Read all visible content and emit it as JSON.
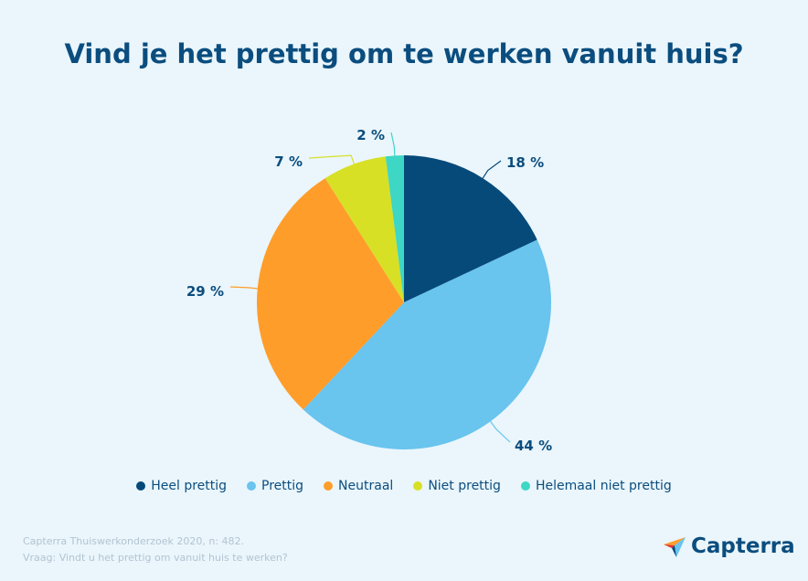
{
  "title": "Vind je het prettig om te werken vanuit huis?",
  "chart_data": {
    "type": "pie",
    "title": "Vind je het prettig om te werken vanuit huis?",
    "slices": [
      {
        "label": "Heel prettig",
        "value": 18,
        "display": "18 %",
        "color": "#064a7a"
      },
      {
        "label": "Prettig",
        "value": 44,
        "display": "44 %",
        "color": "#69c4ee"
      },
      {
        "label": "Neutraal",
        "value": 29,
        "display": "29 %",
        "color": "#ff9d2b"
      },
      {
        "label": "Niet prettig",
        "value": 7,
        "display": "7 %",
        "color": "#d7e025"
      },
      {
        "label": "Helemaal niet prettig",
        "value": 2,
        "display": "2 %",
        "color": "#3ed6c4"
      }
    ],
    "legend_position": "bottom",
    "start_angle": "top, clockwise"
  },
  "footer": {
    "source": "Capterra Thuiswerkonderzoek 2020, n: 482.",
    "question": "Vraag: Vindt u het prettig om vanuit huis te werken?"
  },
  "logo": {
    "text": "Capterra",
    "colors": [
      "#ff9d2b",
      "#69c4ee",
      "#e2342b",
      "#064a7a"
    ]
  }
}
